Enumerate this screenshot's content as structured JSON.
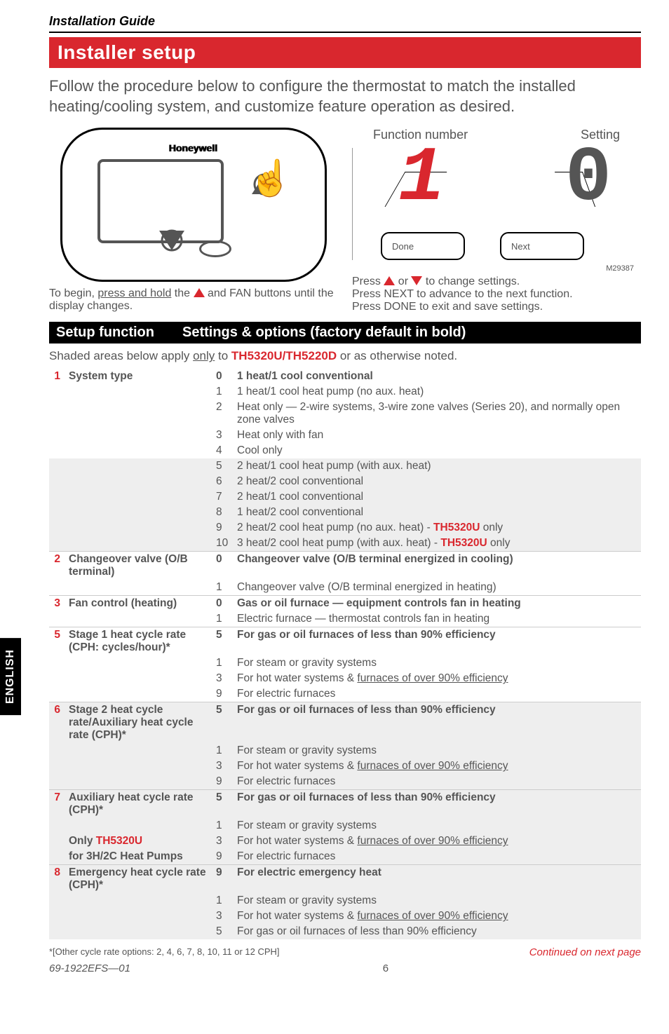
{
  "header": "Installation Guide",
  "title": "Installer setup",
  "intro": "Follow the procedure below to configure the thermostat to match the installed heating/cooling system, and customize feature operation as desired.",
  "diagram": {
    "brand": "Honeywell",
    "func_label": "Function number",
    "setting_label": "Setting",
    "done": "Done",
    "next": "Next",
    "display_func": "1",
    "display_set": "0",
    "mref": "M29387",
    "caption_left_1": "To begin, ",
    "caption_left_u": "press and hold",
    "caption_left_2": " the ",
    "caption_left_3": " and FAN buttons until the display changes.",
    "caption_right_1": "Press ",
    "caption_right_2": " or ",
    "caption_right_3": " to change settings.",
    "caption_right_4": "Press NEXT to advance to the next function.",
    "caption_right_5": "Press DONE to exit and save settings."
  },
  "section": {
    "left": "Setup function",
    "right": "Settings & options (factory default in bold)"
  },
  "note_pre": "Shaded areas below apply ",
  "note_u": "only",
  "note_mid": " to ",
  "note_model": "TH5320U/TH5220D",
  "note_post": " or as otherwise noted.",
  "rows": {
    "r1": {
      "n": "1",
      "name": "System type",
      "opts": [
        {
          "k": "0",
          "v": "1 heat/1 cool conventional",
          "b": true
        },
        {
          "k": "1",
          "v": "1 heat/1 cool heat pump (no aux. heat)"
        },
        {
          "k": "2",
          "v": "Heat only — 2-wire systems, 3-wire zone valves (Series 20), and normally open zone valves"
        },
        {
          "k": "3",
          "v": "Heat only with fan"
        },
        {
          "k": "4",
          "v": "Cool only"
        }
      ],
      "shaded": [
        {
          "k": "5",
          "v": "2 heat/1 cool heat pump (with aux. heat)"
        },
        {
          "k": "6",
          "v": "2 heat/2 cool conventional"
        },
        {
          "k": "7",
          "v": "2 heat/1 cool conventional"
        },
        {
          "k": "8",
          "v": "1 heat/2 cool conventional"
        },
        {
          "k": "9",
          "pre": "2 heat/2 cool heat pump (no aux. heat) - ",
          "model": "TH5320U",
          "post": " only"
        },
        {
          "k": "10",
          "pre": "3 heat/2 cool heat pump (with aux. heat) - ",
          "model": "TH5320U",
          "post": " only"
        }
      ]
    },
    "r2": {
      "n": "2",
      "name": "Changeover valve (O/B terminal)",
      "opts": [
        {
          "k": "0",
          "v": "Changeover valve (O/B terminal energized in cooling)",
          "b": true
        },
        {
          "k": "1",
          "v": "Changeover valve (O/B terminal energized in heating)"
        }
      ]
    },
    "r3": {
      "n": "3",
      "name": "Fan control (heating)",
      "opts": [
        {
          "k": "0",
          "v": "Gas or oil furnace — equipment controls fan in heating",
          "b": true
        },
        {
          "k": "1",
          "v": "Electric furnace — thermostat controls fan in heating"
        }
      ]
    },
    "r5": {
      "n": "5",
      "name": "Stage 1 heat cycle rate (CPH: cycles/hour)*",
      "opts": [
        {
          "k": "5",
          "v": "For gas or oil furnaces of less than 90% efficiency",
          "b": true
        },
        {
          "k": "1",
          "v": "For steam or gravity systems"
        },
        {
          "k": "3",
          "pre": "For hot water systems & ",
          "u": "furnaces of over 90% efficiency"
        },
        {
          "k": "9",
          "v": "For electric furnaces"
        }
      ]
    },
    "r6": {
      "n": "6",
      "name": "Stage 2 heat cycle rate/Auxiliary heat cycle rate (CPH)*",
      "opts": [
        {
          "k": "5",
          "v": "For gas or oil furnaces of less than 90% efficiency",
          "b": true
        },
        {
          "k": "1",
          "v": "For steam or gravity systems"
        },
        {
          "k": "3",
          "pre": "For hot water systems & ",
          "u": "furnaces of over 90% efficiency"
        },
        {
          "k": "9",
          "v": "For electric furnaces"
        }
      ]
    },
    "r7": {
      "n": "7",
      "name_l1": "Auxiliary heat cycle rate (CPH)*",
      "name_l2_pre": "Only ",
      "name_l2_model": "TH5320U",
      "name_l3": "for 3H/2C Heat Pumps",
      "opts": [
        {
          "k": "5",
          "v": "For gas or oil furnaces of less than 90% efficiency",
          "b": true
        },
        {
          "k": "1",
          "v": "For steam or gravity systems"
        },
        {
          "k": "3",
          "pre": "For hot water systems & ",
          "u": "furnaces of over 90% efficiency"
        },
        {
          "k": "9",
          "v": "For electric furnaces"
        }
      ]
    },
    "r8": {
      "n": "8",
      "name": "Emergency heat cycle rate (CPH)*",
      "opts": [
        {
          "k": "9",
          "v": "For electric emergency heat",
          "b": true
        },
        {
          "k": "1",
          "v": "For steam or gravity systems"
        },
        {
          "k": "3",
          "pre": "For hot water systems & ",
          "u": "furnaces of over 90% efficiency"
        },
        {
          "k": "5",
          "v": "For gas or oil furnaces of less than 90% efficiency"
        }
      ]
    }
  },
  "footnote": "*[Other cycle rate options: 2, 4, 6, 7, 8, 10, 11 or 12 CPH]",
  "continued": "Continued on next page",
  "doc_num": "69-1922EFS—01",
  "page": "6",
  "sidetab": "ENGLISH",
  "colors": {
    "red": "#d9272e",
    "grey": "#555",
    "shade": "#eee"
  }
}
